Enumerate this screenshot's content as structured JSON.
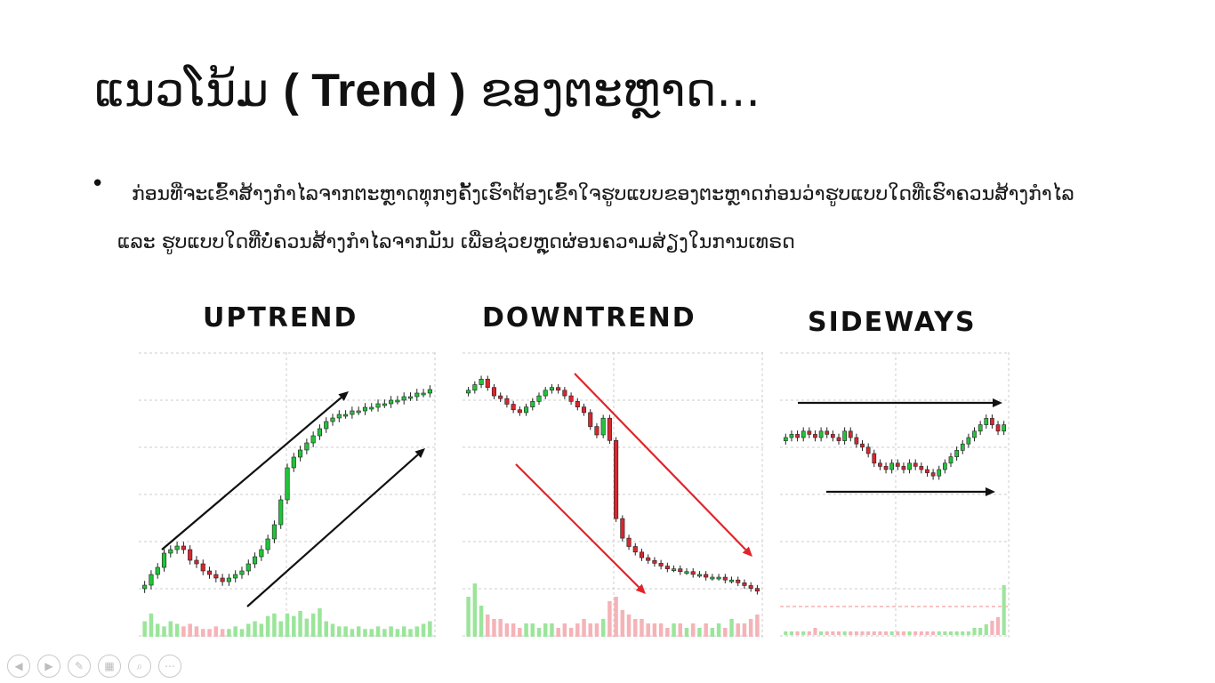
{
  "slide": {
    "title_part1": "ແນວໂນ້ມ ",
    "title_part2": "( Trend )",
    "title_part3": " ຂອງຕະຫຼາດ...",
    "bullet": "ກ່ອນທີ່ຈະເຂົ້າສ້າງກຳໄລຈາກຕະຫຼາດທຸກໆຄັ້ງເຮົາຕ້ອງເຂົ້າໃຈຮູບແບບຂອງຕະຫຼາດກ່ອນວ່າຮູບແບບໃດທີ່ເຮົາຄວນສ້າງກຳໄລ ແລະ ຮູບແບບໃດທີ່ບໍ່ຄວນສ້າງກຳໄລຈາກມັນ ເພື່ອຊ່ວຍຫຼຸດຜ່ອນຄວາມສ່ຽງໃນການເທຣດ"
  },
  "colors": {
    "up": "#22c23a",
    "down": "#d9262e",
    "vol_up": "#9be59b",
    "vol_down": "#f5b3b8",
    "grid": "#cccccc",
    "arrow_up": "#111111",
    "arrow_down": "#e0242a"
  },
  "chart_data": [
    {
      "type": "candlestick",
      "title": "UPTREND",
      "arrows": "two parallel black arrows pointing up-right",
      "closes": [
        37,
        40,
        42,
        46,
        47,
        48,
        47,
        44,
        43,
        41,
        40,
        39,
        38,
        39,
        40,
        41,
        43,
        45,
        47,
        50,
        54,
        61,
        70,
        73,
        75,
        77,
        79,
        81,
        83,
        84,
        85,
        85,
        86,
        86,
        87,
        87,
        88,
        88,
        89,
        89,
        90,
        90,
        91,
        91,
        92
      ],
      "volume": [
        6,
        9,
        5,
        4,
        6,
        5,
        4,
        5,
        4,
        3,
        3,
        4,
        3,
        3,
        4,
        3,
        5,
        6,
        5,
        8,
        9,
        6,
        9,
        8,
        10,
        7,
        9,
        11,
        6,
        5,
        4,
        4,
        3,
        4,
        3,
        3,
        4,
        3,
        4,
        3,
        4,
        3,
        4,
        5,
        6
      ]
    },
    {
      "type": "candlestick",
      "title": "DOWNTREND",
      "arrows": "two parallel red arrows pointing down-right",
      "closes": [
        88,
        90,
        92,
        89,
        86,
        85,
        83,
        81,
        80,
        82,
        84,
        86,
        88,
        89,
        88,
        86,
        84,
        82,
        80,
        75,
        72,
        78,
        70,
        42,
        35,
        32,
        30,
        28,
        27,
        26,
        25,
        24,
        24,
        23,
        23,
        22,
        22,
        21,
        21,
        21,
        20,
        20,
        19,
        18,
        17,
        16
      ],
      "volume": [
        9,
        12,
        7,
        5,
        4,
        4,
        3,
        3,
        2,
        3,
        3,
        2,
        3,
        3,
        2,
        3,
        2,
        3,
        4,
        3,
        3,
        4,
        8,
        9,
        6,
        5,
        4,
        4,
        3,
        3,
        3,
        2,
        3,
        3,
        2,
        3,
        2,
        3,
        2,
        3,
        2,
        4,
        3,
        3,
        4,
        5
      ]
    },
    {
      "type": "candlestick",
      "title": "SIDEWAYS",
      "arrows": "two horizontal black arrows pointing right",
      "closes": [
        70,
        71,
        70,
        72,
        71,
        70,
        72,
        71,
        70,
        69,
        72,
        70,
        68,
        67,
        65,
        62,
        61,
        60,
        62,
        61,
        60,
        62,
        61,
        60,
        59,
        58,
        60,
        62,
        64,
        66,
        68,
        70,
        72,
        74,
        76,
        74,
        72,
        74
      ],
      "volume": [
        1,
        1,
        1,
        1,
        1,
        2,
        1,
        1,
        1,
        1,
        1,
        1,
        1,
        1,
        1,
        1,
        1,
        1,
        1,
        1,
        1,
        1,
        1,
        1,
        1,
        1,
        1,
        1,
        1,
        1,
        1,
        1,
        2,
        2,
        3,
        4,
        5,
        14
      ]
    }
  ]
}
